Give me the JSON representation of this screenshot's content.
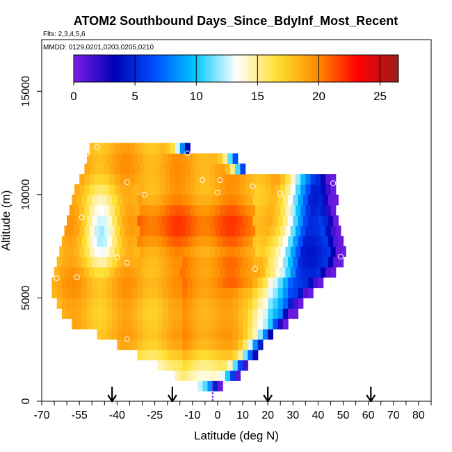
{
  "chart_data": {
    "type": "heatmap",
    "title": "ATOM2 Southbound Days_Since_BdyInf_Most_Recent",
    "subtitle_flights": "Flts: 2,3,4,5,6",
    "subtitle_dates": "MMDD: 0129,0201,0203,0205,0210",
    "xlabel": "Latitude (deg N)",
    "ylabel": "Altitude (m)",
    "xlim": [
      -70,
      85
    ],
    "ylim": [
      0,
      17500
    ],
    "x_ticks": [
      -70,
      -55,
      -40,
      -25,
      -10,
      0,
      10,
      20,
      30,
      40,
      50,
      60,
      70,
      80
    ],
    "y_ticks": [
      0,
      5000,
      10000,
      15000
    ],
    "colorbar": {
      "min": 0,
      "max": 26.5,
      "ticks": [
        0,
        5,
        10,
        15,
        20,
        25
      ],
      "colors": [
        "#7b1fe8",
        "#0000b4",
        "#0050ff",
        "#00c8ff",
        "#ffffff",
        "#ffe033",
        "#ff8c00",
        "#ff0000",
        "#9e1b1b"
      ]
    },
    "arrows_latitude": [
      -42,
      -18,
      20,
      61
    ],
    "marker_latitude": -2,
    "altitude_bins": [
      750,
      1250,
      1750,
      2250,
      2750,
      3250,
      3750,
      4250,
      4750,
      5250,
      5750,
      6250,
      6750,
      7250,
      7750,
      8250,
      8750,
      9250,
      9750,
      10250,
      10750,
      11250,
      11750,
      12250
    ],
    "altitude_lat_extent": [
      [
        -10,
        2
      ],
      [
        -17,
        9
      ],
      [
        -24,
        12
      ],
      [
        -32,
        16
      ],
      [
        -40,
        18
      ],
      [
        -48,
        22
      ],
      [
        -58,
        27
      ],
      [
        -62,
        31
      ],
      [
        -64,
        34
      ],
      [
        -66,
        38
      ],
      [
        -66,
        42
      ],
      [
        -65,
        46
      ],
      [
        -64,
        49
      ],
      [
        -63,
        50
      ],
      [
        -62,
        49
      ],
      [
        -61,
        48
      ],
      [
        -60,
        48
      ],
      [
        -59,
        47
      ],
      [
        -58,
        47
      ],
      [
        -57,
        47
      ],
      [
        -55,
        46
      ],
      [
        -53,
        11
      ],
      [
        -52,
        8
      ],
      [
        -51,
        -12
      ]
    ],
    "observations": [
      {
        "lat": -52,
        "alt": 12000
      },
      {
        "lat": -48,
        "alt": 12300
      },
      {
        "lat": -12,
        "alt": 12000
      },
      {
        "lat": -36,
        "alt": 10600
      },
      {
        "lat": -29,
        "alt": 10000
      },
      {
        "lat": -6,
        "alt": 10700
      },
      {
        "lat": 1,
        "alt": 10700
      },
      {
        "lat": 0,
        "alt": 10100
      },
      {
        "lat": 14,
        "alt": 10400
      },
      {
        "lat": 25,
        "alt": 10050
      },
      {
        "lat": 46,
        "alt": 10550
      },
      {
        "lat": -54,
        "alt": 8900
      },
      {
        "lat": -40,
        "alt": 6950
      },
      {
        "lat": -36,
        "alt": 6700
      },
      {
        "lat": -64,
        "alt": 5950
      },
      {
        "lat": -56,
        "alt": 6000
      },
      {
        "lat": 15,
        "alt": 6400
      },
      {
        "lat": 49,
        "alt": 7000
      },
      {
        "lat": -36,
        "alt": 3000
      }
    ]
  }
}
